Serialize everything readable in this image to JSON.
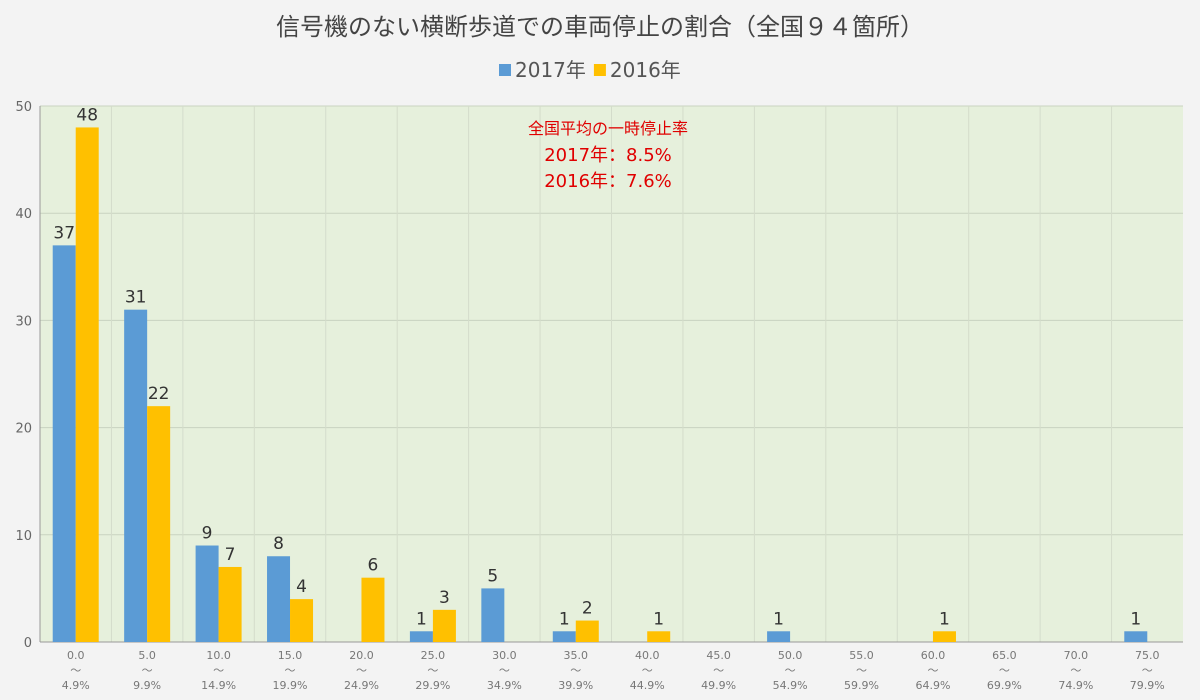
{
  "chart_data": {
    "type": "bar",
    "title": "信号機のない横断歩道での車両停止の割合（全国９４箇所）",
    "categories": [
      {
        "start": "0.0",
        "sep": "～",
        "end": "4.9%"
      },
      {
        "start": "5.0",
        "sep": "～",
        "end": "9.9%"
      },
      {
        "start": "10.0",
        "sep": "～",
        "end": "14.9%"
      },
      {
        "start": "15.0",
        "sep": "～",
        "end": "19.9%"
      },
      {
        "start": "20.0",
        "sep": "～",
        "end": "24.9%"
      },
      {
        "start": "25.0",
        "sep": "～",
        "end": "29.9%"
      },
      {
        "start": "30.0",
        "sep": "～",
        "end": "34.9%"
      },
      {
        "start": "35.0",
        "sep": "～",
        "end": "39.9%"
      },
      {
        "start": "40.0",
        "sep": "～",
        "end": "44.9%"
      },
      {
        "start": "45.0",
        "sep": "～",
        "end": "49.9%"
      },
      {
        "start": "50.0",
        "sep": "～",
        "end": "54.9%"
      },
      {
        "start": "55.0",
        "sep": "～",
        "end": "59.9%"
      },
      {
        "start": "60.0",
        "sep": "～",
        "end": "64.9%"
      },
      {
        "start": "65.0",
        "sep": "～",
        "end": "69.9%"
      },
      {
        "start": "70.0",
        "sep": "～",
        "end": "74.9%"
      },
      {
        "start": "75.0",
        "sep": "～",
        "end": "79.9%"
      }
    ],
    "series": [
      {
        "name": "2017年",
        "color": "#5b9bd5",
        "values": [
          37,
          31,
          9,
          8,
          0,
          1,
          5,
          1,
          0,
          0,
          1,
          0,
          0,
          0,
          0,
          1
        ]
      },
      {
        "name": "2016年",
        "color": "#ffc000",
        "values": [
          48,
          22,
          7,
          4,
          6,
          3,
          0,
          2,
          1,
          0,
          0,
          0,
          1,
          0,
          0,
          0
        ]
      }
    ],
    "ylim": [
      0,
      50
    ],
    "yticks": [
      0,
      10,
      20,
      30,
      40,
      50
    ],
    "grid": true,
    "legend_position": "top-center",
    "plot_background": "#e6f0dc",
    "annotation": {
      "heading": "全国平均の一時停止率",
      "lines": [
        "2017年：8.5%",
        "2016年：7.6%"
      ],
      "color": "#e00000"
    }
  }
}
